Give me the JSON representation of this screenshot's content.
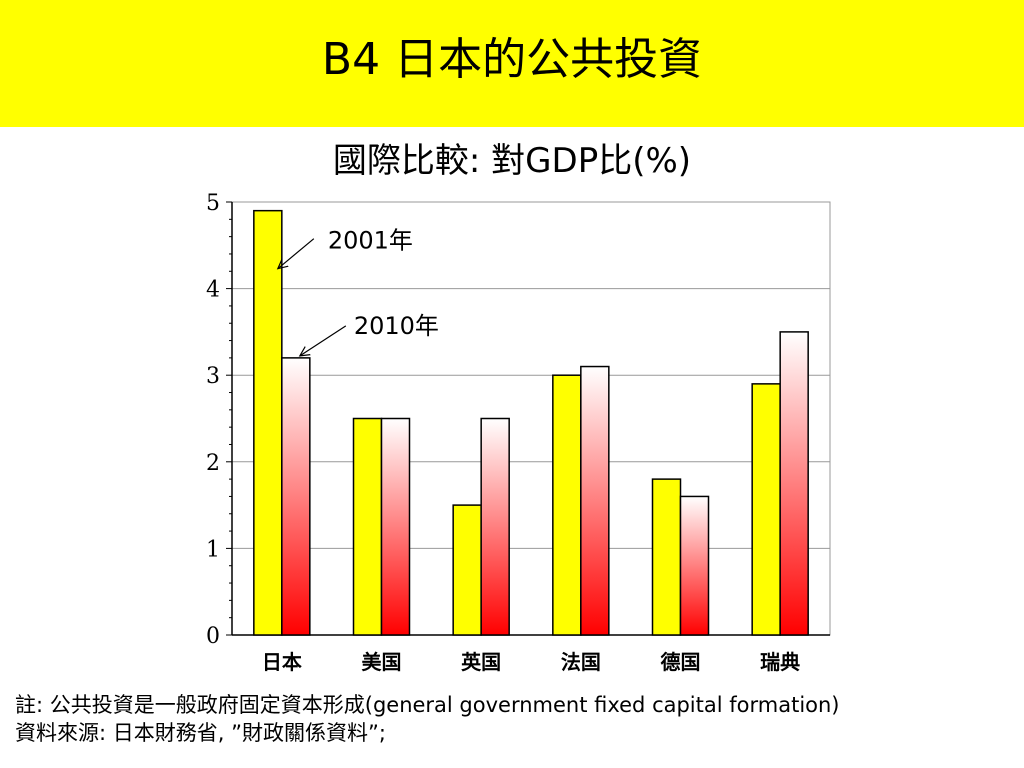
{
  "slide": {
    "title": "B4  日本的公共投資"
  },
  "chart_data": {
    "type": "bar",
    "subtitle": "國際比較:  對GDP比(%)",
    "categories": [
      "日本",
      "美国",
      "英国",
      "法国",
      "德国",
      "瑞典"
    ],
    "series": [
      {
        "name": "2001年",
        "values": [
          4.9,
          2.5,
          1.5,
          3.0,
          1.8,
          2.9
        ]
      },
      {
        "name": "2010年",
        "values": [
          3.2,
          2.5,
          2.5,
          3.1,
          1.6,
          3.5
        ]
      }
    ],
    "ylim": [
      0,
      5
    ],
    "yticks": [
      "0",
      "1",
      "2",
      "3",
      "4",
      "5"
    ],
    "grid": true,
    "colors": {
      "series1": "#ffff00",
      "series2_top": "#ffffff",
      "series2_bottom": "#ff0000",
      "grid": "#999999",
      "axis": "#000000"
    }
  },
  "notes": {
    "line1": "註:  公共投資是一般政府固定資本形成(general government fixed capital formation)",
    "line2": "資料來源:  日本財務省, ”財政關係資料”;"
  }
}
